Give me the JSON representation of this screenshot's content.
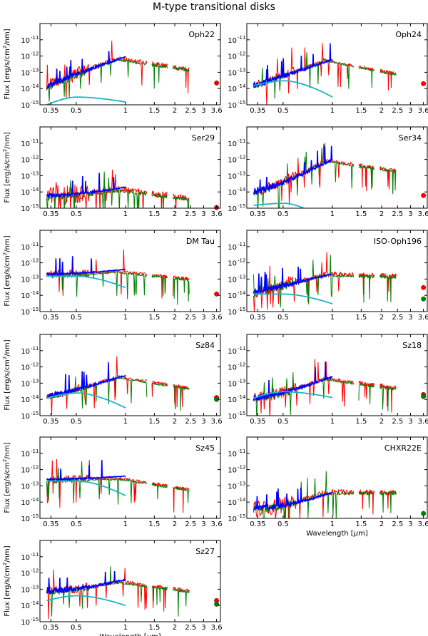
{
  "figure": {
    "title": "M-type transitional disks",
    "ylabel_parts": [
      "Flux [erg/s/cm",
      "2",
      "/nm]"
    ],
    "xlabel_parts": [
      "Wavelength [",
      "μ",
      "m]"
    ]
  },
  "chart_data": {
    "type": "line",
    "title": "M-type transitional disks",
    "xlabel": "Wavelength [μm]",
    "ylabel": "Flux [erg/s/cm2/nm]",
    "xscale": "log",
    "yscale": "log",
    "xlim": [
      0.3,
      3.8
    ],
    "ylim": [
      1e-15,
      1e-10
    ],
    "xticks": [
      0.35,
      0.5,
      1,
      1.5,
      2,
      2.5,
      3,
      3.6
    ],
    "xtick_labels": [
      "0.35",
      "0.5",
      "1",
      "1.5",
      "2",
      "2.5",
      "3",
      "3.6"
    ],
    "yticks": [
      1e-15,
      1e-14,
      1e-13,
      1e-12,
      1e-11
    ],
    "ytick_exponents": [
      "-15",
      "-14",
      "-13",
      "-12",
      "-11"
    ],
    "ytick_base": "10",
    "series_colors": {
      "observed_red": "#ff0000",
      "model_green": "#008000",
      "fit_blue": "#0000ff",
      "photosphere_cyan": "#1ab5c8",
      "photometry_point_red": "#ff0000",
      "photometry_point_green": "#008000"
    },
    "panels": [
      {
        "name": "Oph22",
        "slope": 2.3,
        "blue_start": 1.2e-14,
        "blue_end": 9e-13,
        "plateau": 7e-13,
        "ir_end": 1.5e-13,
        "cyan": {
          "peak": 3e-15,
          "start": 1e-15,
          "end": 1.5e-15
        },
        "dots": {
          "red": 2.2e-14
        },
        "red_noise": 0.8,
        "blue_noise": 0.3
      },
      {
        "name": "Oph24",
        "slope": 2.0,
        "blue_start": 1.5e-14,
        "blue_end": 6e-13,
        "plateau": 6e-13,
        "ir_end": 8e-14,
        "cyan": {
          "peak": 3e-14,
          "start": 1.5e-14,
          "end": 3e-15
        },
        "dots": {
          "red": 2e-14
        },
        "red_noise": 0.5,
        "blue_noise": 0.3
      },
      {
        "name": "Ser29",
        "slope": 0.5,
        "blue_start": 6e-15,
        "blue_end": 2e-14,
        "plateau": 1.5e-14,
        "ir_end": 4e-15,
        "cyan": null,
        "dots": {
          "red": 1.1e-15
        },
        "red_noise": 1.2,
        "blue_noise": 0.2
      },
      {
        "name": "Ser34",
        "slope": 1.6,
        "blue_start": 1e-14,
        "blue_end": 1e-12,
        "plateau": 9e-13,
        "ir_end": 2e-13,
        "cyan": {
          "peak": 2e-15,
          "start": 1.5e-15,
          "end": 1e-16
        },
        "dots": {
          "red": 6e-15
        },
        "red_noise": 0.6,
        "blue_noise": 0.4
      },
      {
        "name": "DM Tau",
        "slope": 0.5,
        "blue_start": 2e-13,
        "blue_end": 4e-13,
        "plateau": 3e-13,
        "ir_end": 1e-13,
        "cyan": {
          "peak": 1.5e-13,
          "start": 1.5e-13,
          "end": 3e-14
        },
        "dots": {
          "red": 1.2e-14
        },
        "red_noise": 0.5,
        "blue_noise": 0.1
      },
      {
        "name": "ISO-Oph196",
        "slope": 2.0,
        "blue_start": 1.5e-14,
        "blue_end": 2e-13,
        "plateau": 2e-13,
        "ir_end": 1.5e-13,
        "cyan": {
          "peak": 1.2e-14,
          "start": 1.2e-14,
          "end": 3e-15
        },
        "dots": {
          "red": 3e-14,
          "green": 6e-15
        },
        "red_noise": 0.9,
        "blue_noise": 0.3
      },
      {
        "name": "Sz84",
        "slope": 1.8,
        "blue_start": 1.5e-14,
        "blue_end": 3e-13,
        "plateau": 2.5e-13,
        "ir_end": 5e-14,
        "cyan": {
          "peak": 2.5e-14,
          "start": 1.2e-14,
          "end": 3e-15
        },
        "dots": {
          "red": 1.3e-14,
          "green": 1e-14
        },
        "red_noise": 0.5,
        "blue_noise": 0.3
      },
      {
        "name": "Sz18",
        "slope": 1.5,
        "blue_start": 1.2e-14,
        "blue_end": 2.5e-13,
        "plateau": 2e-13,
        "ir_end": 5e-14,
        "cyan": {
          "peak": 3e-14,
          "start": 1.2e-14,
          "end": 1.3e-14
        },
        "dots": {
          "red": 2e-14,
          "green": 1.5e-14
        },
        "red_noise": 0.7,
        "blue_noise": 0.3
      },
      {
        "name": "Sz45",
        "slope": 0.5,
        "blue_start": 2.5e-13,
        "blue_end": 4e-13,
        "plateau": 3e-13,
        "ir_end": 6e-14,
        "cyan": {
          "peak": 2e-13,
          "start": 2e-13,
          "end": 2.5e-14
        },
        "dots": {},
        "red_noise": 0.5,
        "blue_noise": 0.1
      },
      {
        "name": "CHXR22E",
        "slope": 1.0,
        "blue_start": 4e-15,
        "blue_end": 4e-14,
        "plateau": 4e-14,
        "ir_end": 4e-14,
        "cyan": null,
        "dots": {
          "green": 2e-15
        },
        "red_noise": 1.0,
        "blue_noise": 0.3
      },
      {
        "name": "Sz27",
        "slope": 0.9,
        "blue_start": 8e-14,
        "blue_end": 4e-13,
        "plateau": 3e-13,
        "ir_end": 8e-14,
        "cyan": {
          "peak": 4e-14,
          "start": 2e-14,
          "end": 1e-14
        },
        "dots": {
          "red": 2e-14,
          "green": 1.2e-14
        },
        "red_noise": 0.6,
        "blue_noise": 0.3
      }
    ]
  }
}
